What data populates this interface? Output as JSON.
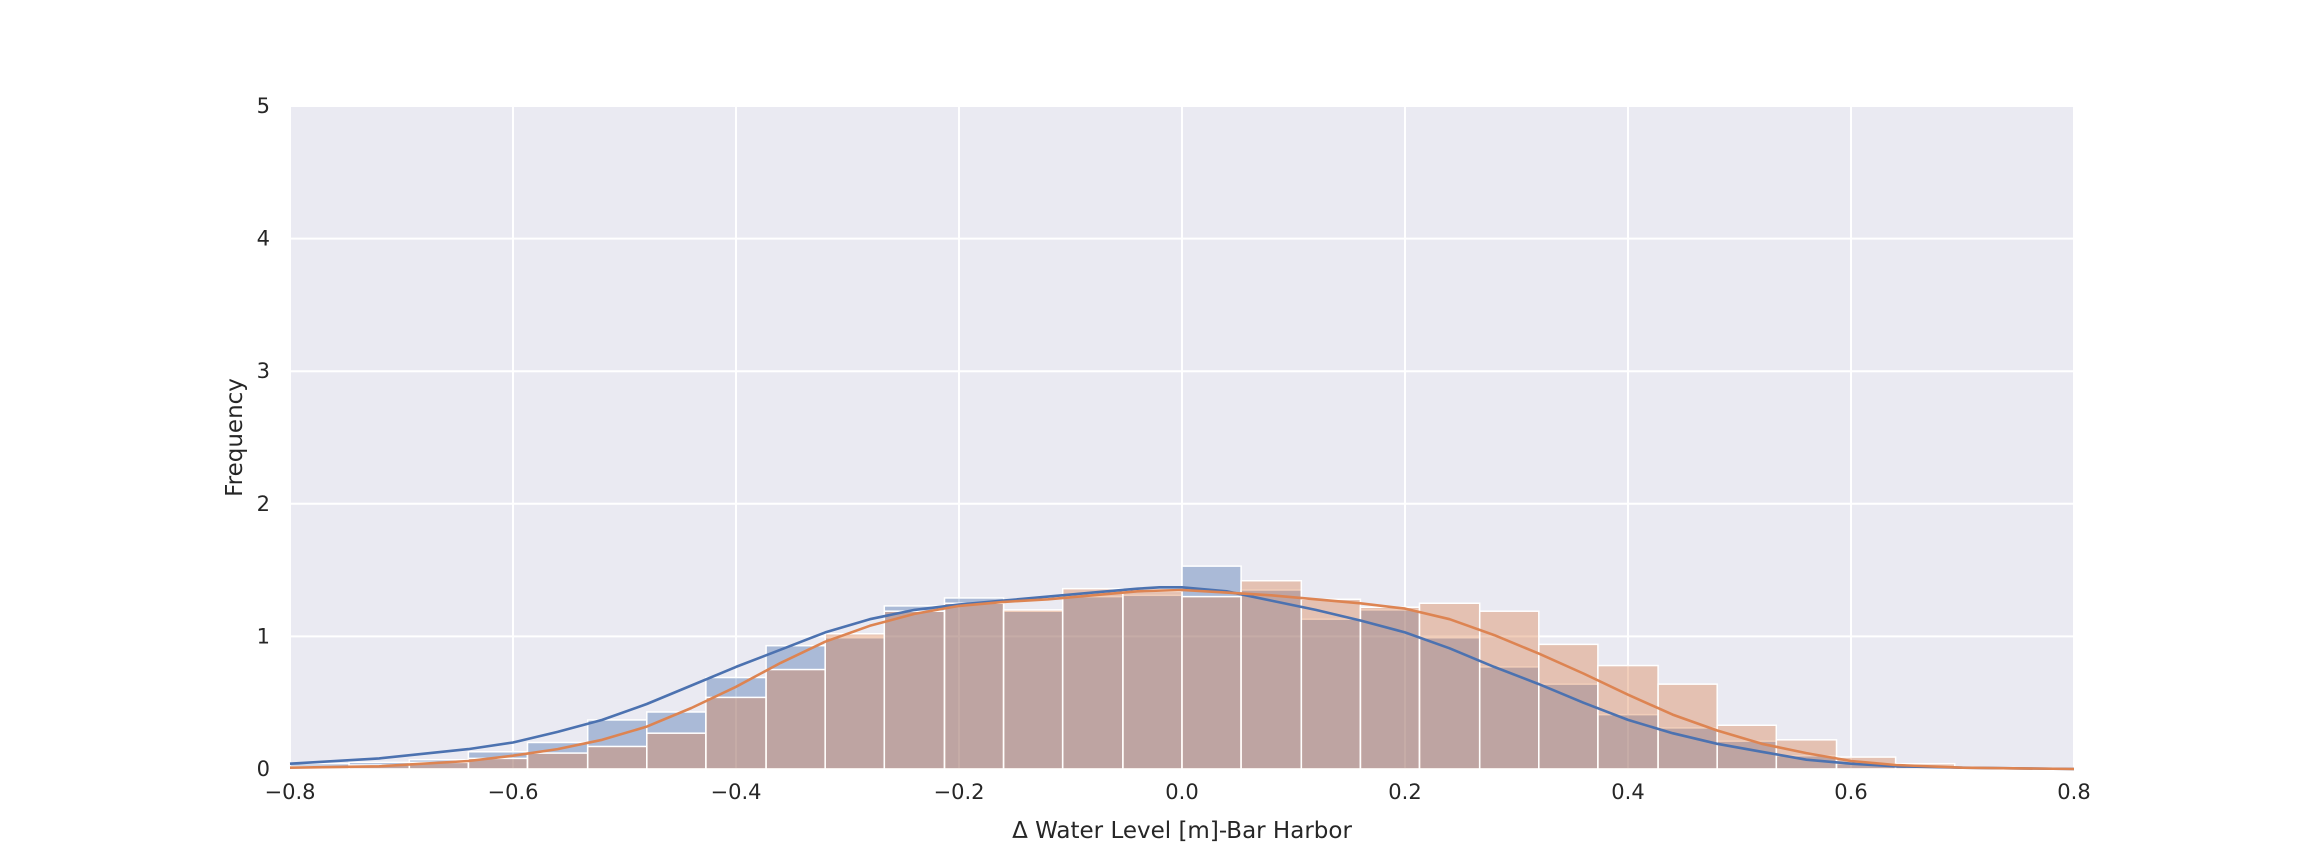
{
  "chart_data": {
    "type": "histogram",
    "xlabel": "Δ Water Level [m]-Bar Harbor",
    "ylabel": "Frequency",
    "xlim": [
      -0.8,
      0.8
    ],
    "ylim": [
      0,
      5
    ],
    "x_ticks": [
      -0.8,
      -0.6,
      -0.4,
      -0.2,
      0.0,
      0.2,
      0.4,
      0.6,
      0.8
    ],
    "x_tick_labels": [
      "−0.8",
      "−0.6",
      "−0.4",
      "−0.2",
      "0.0",
      "0.2",
      "0.4",
      "0.6",
      "0.8"
    ],
    "y_ticks": [
      0,
      1,
      2,
      3,
      4,
      5
    ],
    "y_tick_labels": [
      "0",
      "1",
      "2",
      "3",
      "4",
      "5"
    ],
    "grid": true,
    "background": "#EAEAF2",
    "series": [
      {
        "color": "#4C72B0",
        "bin_edges": [
          -0.8,
          -0.747,
          -0.693,
          -0.64,
          -0.587,
          -0.533,
          -0.48,
          -0.427,
          -0.373,
          -0.32,
          -0.267,
          -0.213,
          -0.16,
          -0.107,
          -0.053,
          0.0,
          0.053,
          0.107,
          0.16,
          0.213,
          0.267,
          0.32,
          0.373,
          0.427,
          0.48,
          0.533,
          0.587,
          0.64,
          0.693,
          0.747,
          0.8
        ],
        "counts": [
          0.04,
          0.05,
          0.07,
          0.13,
          0.2,
          0.37,
          0.43,
          0.69,
          0.93,
          0.99,
          1.23,
          1.29,
          1.19,
          1.3,
          1.31,
          1.53,
          1.35,
          1.13,
          1.2,
          0.99,
          0.77,
          0.64,
          0.41,
          0.31,
          0.21,
          0.1,
          0.04,
          0.02,
          0.0,
          0.0
        ],
        "kde_x": [
          -0.8,
          -0.72,
          -0.64,
          -0.6,
          -0.56,
          -0.52,
          -0.48,
          -0.44,
          -0.4,
          -0.36,
          -0.32,
          -0.28,
          -0.24,
          -0.2,
          -0.16,
          -0.12,
          -0.08,
          -0.04,
          -0.02,
          0.0,
          0.04,
          0.08,
          0.12,
          0.16,
          0.2,
          0.24,
          0.28,
          0.32,
          0.36,
          0.4,
          0.44,
          0.48,
          0.52,
          0.56,
          0.6,
          0.64,
          0.7,
          0.8
        ],
        "kde_y": [
          0.04,
          0.08,
          0.15,
          0.2,
          0.28,
          0.37,
          0.49,
          0.63,
          0.77,
          0.9,
          1.03,
          1.13,
          1.2,
          1.24,
          1.27,
          1.3,
          1.33,
          1.36,
          1.37,
          1.37,
          1.34,
          1.27,
          1.2,
          1.12,
          1.03,
          0.91,
          0.77,
          0.64,
          0.5,
          0.37,
          0.27,
          0.19,
          0.13,
          0.07,
          0.04,
          0.02,
          0.01,
          0.0
        ]
      },
      {
        "color": "#DD8452",
        "bin_edges": [
          -0.8,
          -0.747,
          -0.693,
          -0.64,
          -0.587,
          -0.533,
          -0.48,
          -0.427,
          -0.373,
          -0.32,
          -0.267,
          -0.213,
          -0.16,
          -0.107,
          -0.053,
          0.0,
          0.053,
          0.107,
          0.16,
          0.213,
          0.267,
          0.32,
          0.373,
          0.427,
          0.48,
          0.533,
          0.587,
          0.64,
          0.693,
          0.747,
          0.8
        ],
        "counts": [
          0.02,
          0.03,
          0.05,
          0.08,
          0.12,
          0.17,
          0.27,
          0.54,
          0.75,
          1.02,
          1.19,
          1.25,
          1.2,
          1.36,
          1.34,
          1.3,
          1.42,
          1.28,
          1.22,
          1.25,
          1.19,
          0.94,
          0.78,
          0.64,
          0.33,
          0.22,
          0.09,
          0.04,
          0.01,
          0.0
        ],
        "kde_x": [
          -0.8,
          -0.72,
          -0.64,
          -0.6,
          -0.56,
          -0.52,
          -0.48,
          -0.44,
          -0.4,
          -0.36,
          -0.32,
          -0.28,
          -0.24,
          -0.2,
          -0.16,
          -0.12,
          -0.08,
          -0.04,
          0.0,
          0.04,
          0.08,
          0.12,
          0.16,
          0.2,
          0.24,
          0.28,
          0.32,
          0.36,
          0.4,
          0.44,
          0.48,
          0.52,
          0.56,
          0.6,
          0.64,
          0.7,
          0.8
        ],
        "kde_y": [
          0.01,
          0.02,
          0.06,
          0.1,
          0.15,
          0.22,
          0.32,
          0.46,
          0.62,
          0.8,
          0.96,
          1.08,
          1.17,
          1.23,
          1.26,
          1.28,
          1.31,
          1.34,
          1.35,
          1.33,
          1.31,
          1.28,
          1.25,
          1.21,
          1.13,
          1.01,
          0.87,
          0.72,
          0.56,
          0.41,
          0.29,
          0.19,
          0.12,
          0.06,
          0.03,
          0.01,
          0.0
        ]
      }
    ]
  }
}
